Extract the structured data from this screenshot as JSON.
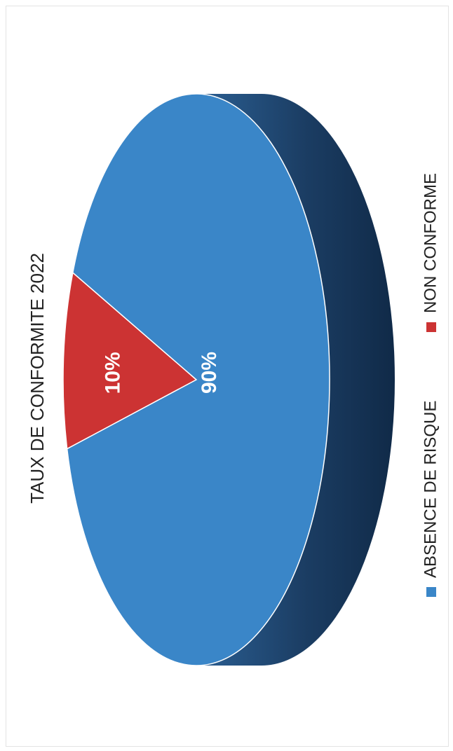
{
  "chart_data": {
    "type": "pie",
    "title": "TAUX DE CONFORMITE 2022",
    "categories": [
      "ABSENCE DE RISQUE",
      "NON CONFORME"
    ],
    "values": [
      90,
      10
    ],
    "data_labels": [
      "90%",
      "10%"
    ],
    "colors": [
      "#3a86c8",
      "#cc3333"
    ],
    "legend_position": "bottom",
    "style": "3d",
    "orientation": "rotated-90-counterclockwise"
  }
}
